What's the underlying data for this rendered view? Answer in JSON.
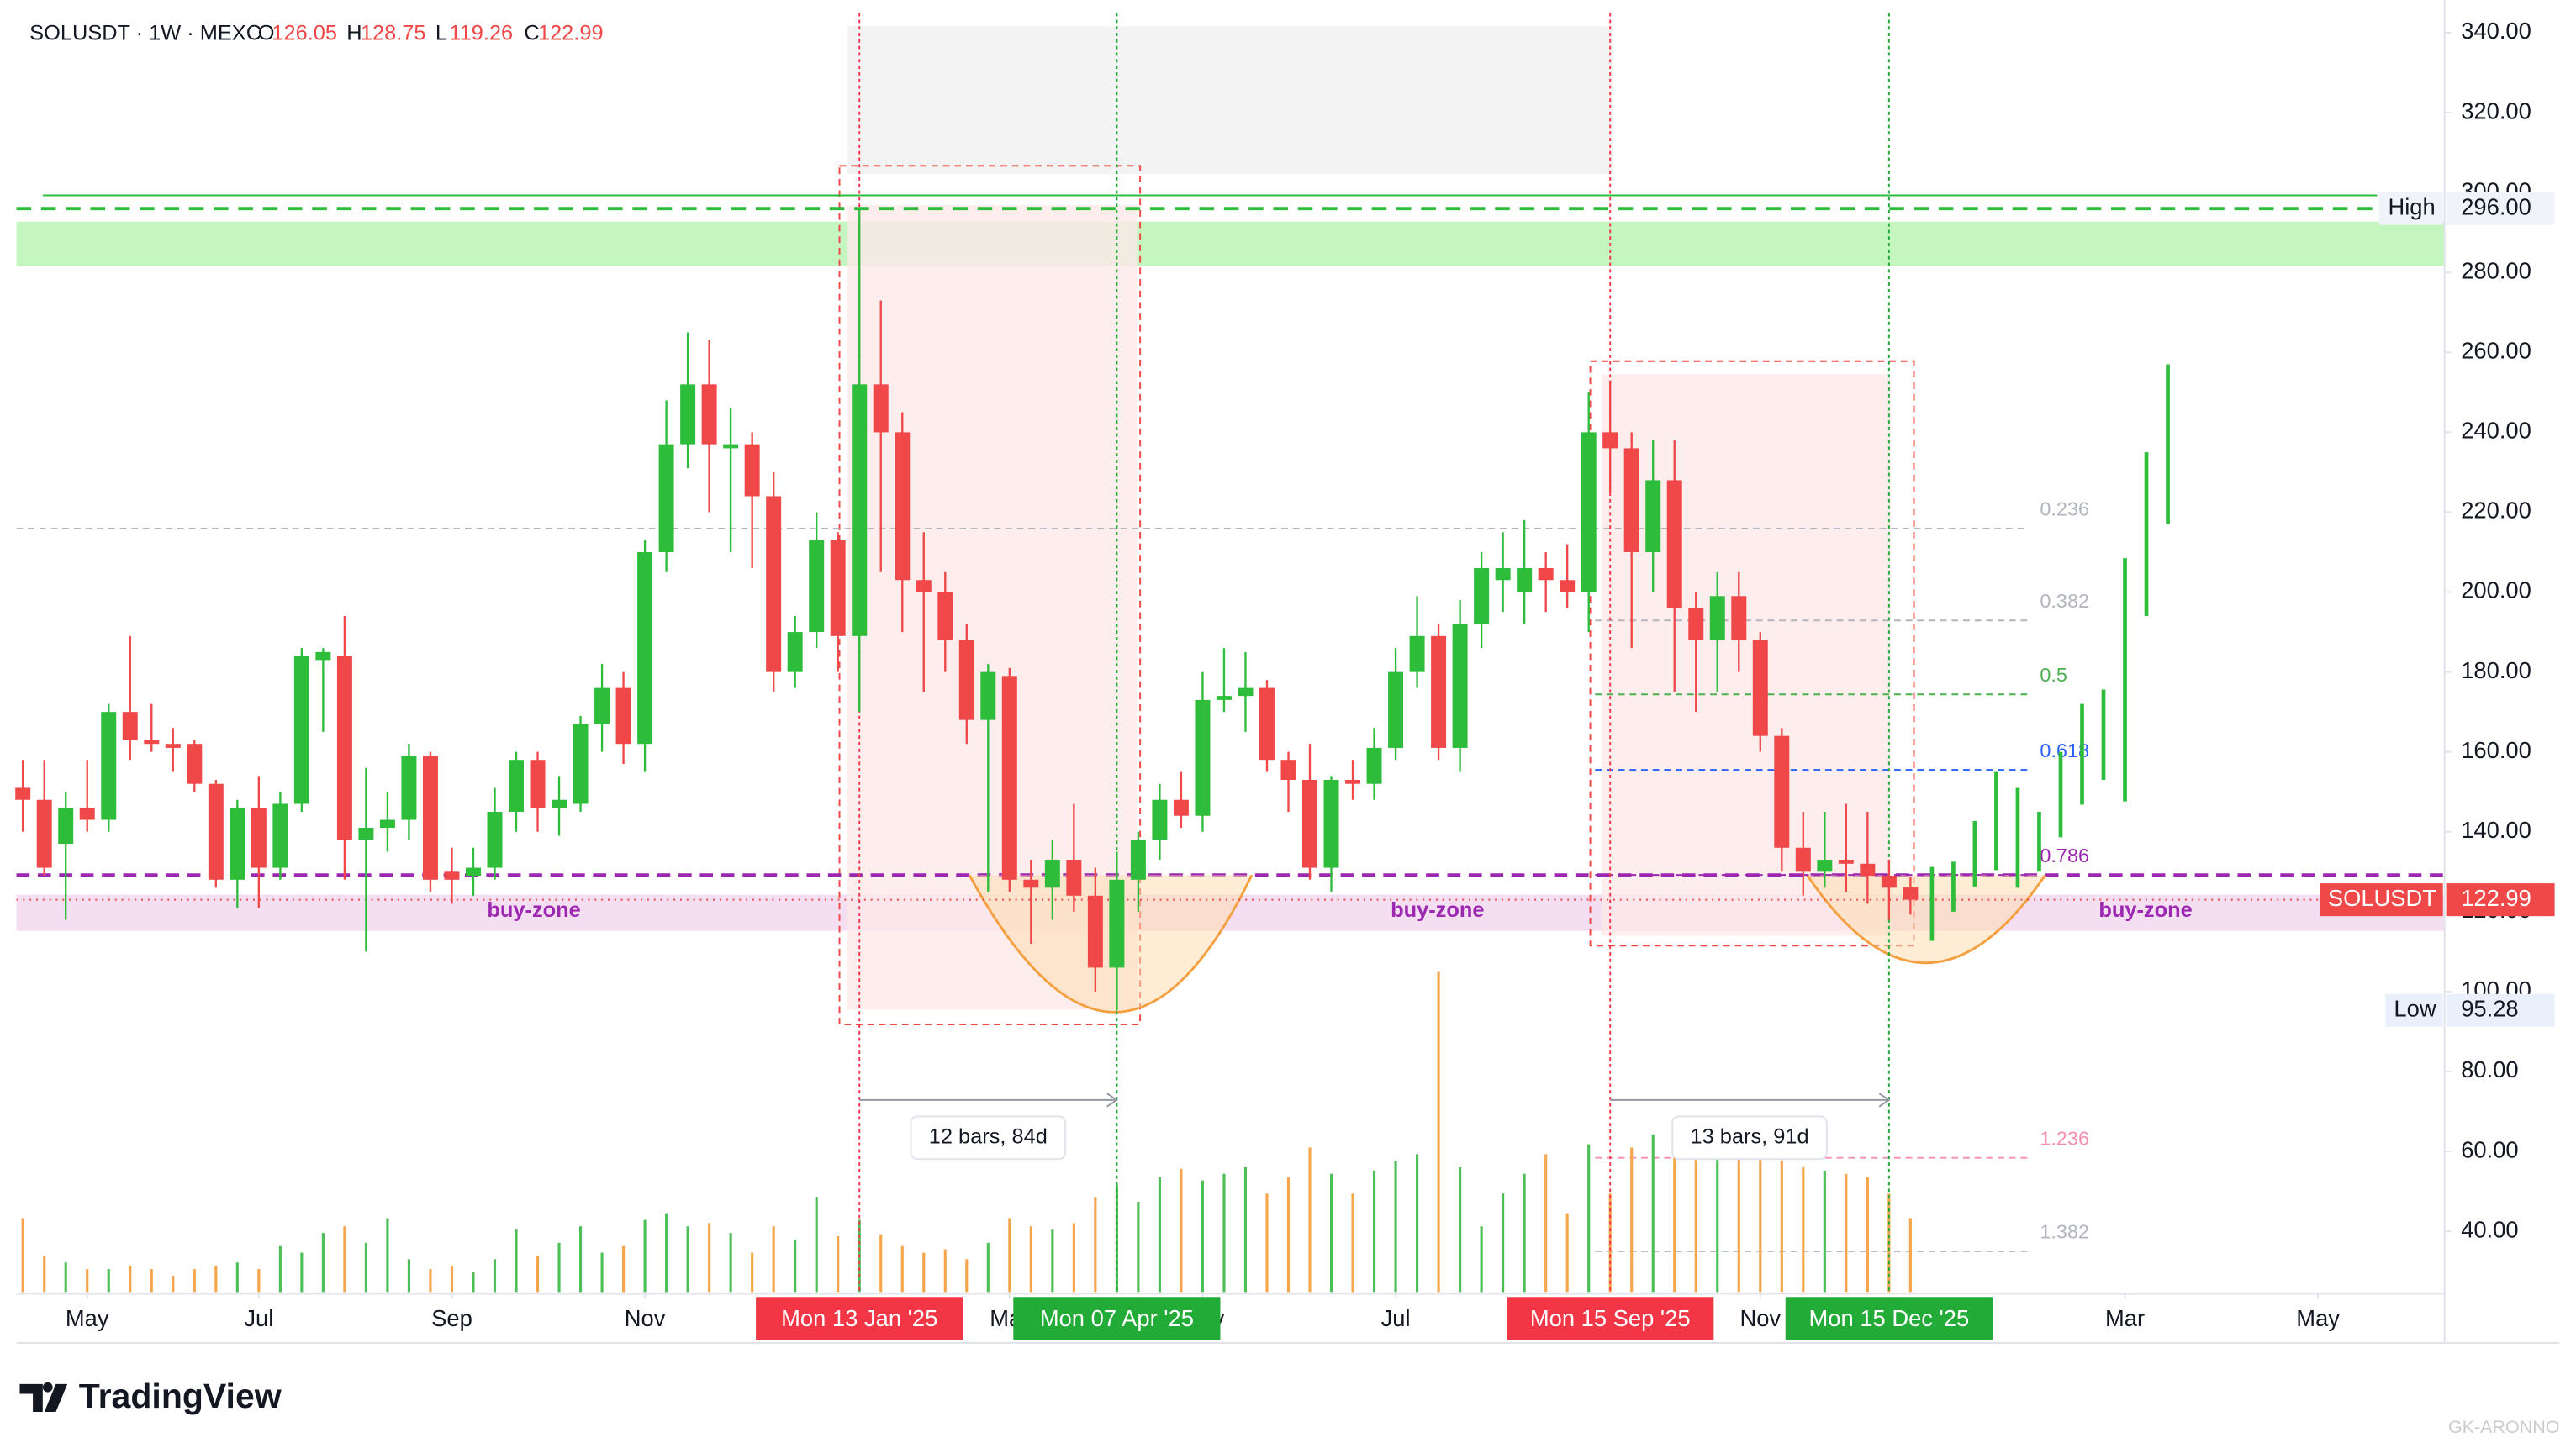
{
  "chart_data": {
    "type": "candlestick",
    "symbol": "SOLUSDT · 1W · MEXC",
    "ohlc": [
      {
        "label": "O",
        "value": 126.05
      },
      {
        "label": "H",
        "value": 128.75
      },
      {
        "label": "L",
        "value": 119.26
      },
      {
        "label": "C",
        "value": 122.99
      }
    ],
    "open": [
      151,
      148,
      137,
      146,
      143,
      170,
      163,
      162,
      162,
      152,
      128,
      146,
      131,
      147,
      183,
      184,
      138,
      141,
      143,
      159,
      130,
      129,
      131,
      145,
      158,
      146,
      147,
      167,
      176,
      162,
      210,
      237,
      252,
      236,
      237,
      224,
      180,
      190,
      213,
      189,
      252,
      240,
      203,
      200,
      188,
      168,
      179,
      128,
      126,
      133,
      124,
      106,
      128,
      138,
      148,
      144,
      173,
      174,
      176,
      158,
      153,
      131,
      153,
      152,
      161,
      180,
      189,
      161,
      192,
      203,
      200,
      206,
      203,
      200,
      240,
      236,
      210,
      228,
      196,
      188,
      199,
      188,
      164,
      136,
      130,
      133,
      132,
      129,
      126.05
    ],
    "high": [
      158,
      158,
      150,
      158,
      172,
      189,
      172,
      166,
      163,
      153,
      148,
      154,
      150,
      186,
      186,
      194,
      156,
      150,
      162,
      160,
      136,
      136,
      151,
      160,
      160,
      154,
      169,
      182,
      180,
      213,
      248,
      265,
      263,
      246,
      240,
      230,
      194,
      220,
      215,
      296,
      273,
      245,
      215,
      205,
      192,
      182,
      181,
      133,
      138,
      147,
      131,
      135,
      140,
      152,
      155,
      180,
      186,
      185,
      178,
      160,
      162,
      154,
      158,
      166,
      186,
      199,
      192,
      198,
      210,
      215,
      218,
      210,
      212,
      250,
      253,
      240,
      238,
      238,
      200,
      205,
      205,
      190,
      166,
      145,
      145,
      147,
      145,
      133,
      128.75
    ],
    "low": [
      140,
      129,
      118,
      140,
      140,
      158,
      160,
      155,
      150,
      126,
      121,
      121,
      128,
      145,
      165,
      128,
      110,
      135,
      138,
      125,
      122,
      124,
      128,
      140,
      140,
      139,
      145,
      160,
      157,
      155,
      205,
      231,
      220,
      210,
      206,
      175,
      176,
      186,
      180,
      170,
      205,
      190,
      175,
      180,
      162,
      125,
      125,
      112,
      118,
      120,
      100,
      95.28,
      120,
      133,
      141,
      140,
      170,
      165,
      155,
      145,
      128,
      125,
      148,
      148,
      158,
      176,
      158,
      155,
      186,
      195,
      192,
      195,
      196,
      190,
      225,
      186,
      200,
      175,
      170,
      175,
      180,
      160,
      130,
      124,
      126,
      125,
      122,
      118,
      119.26
    ],
    "close": [
      148,
      131,
      146,
      143,
      170,
      163,
      162,
      161,
      152,
      128,
      146,
      131,
      147,
      184,
      185,
      138,
      141,
      143,
      159,
      128,
      128,
      131,
      145,
      158,
      146,
      148,
      167,
      176,
      162,
      210,
      237,
      252,
      237,
      237,
      224,
      180,
      190,
      213,
      189,
      252,
      240,
      203,
      200,
      188,
      168,
      180,
      128,
      126,
      133,
      124,
      106,
      128,
      138,
      148,
      144,
      173,
      174,
      176,
      158,
      153,
      131,
      153,
      152,
      161,
      180,
      189,
      161,
      192,
      206,
      206,
      206,
      203,
      200,
      240,
      236,
      210,
      228,
      196,
      188,
      199,
      188,
      164,
      136,
      130,
      133,
      132,
      129,
      126,
      122.99
    ],
    "volume": [
      45,
      22,
      18,
      14,
      14,
      16,
      14,
      10,
      14,
      16,
      18,
      14,
      28,
      24,
      36,
      40,
      30,
      45,
      20,
      14,
      16,
      12,
      20,
      38,
      22,
      30,
      40,
      24,
      28,
      44,
      48,
      40,
      42,
      36,
      24,
      40,
      32,
      58,
      34,
      44,
      35,
      28,
      24,
      26,
      20,
      30,
      45,
      40,
      38,
      42,
      58,
      65,
      55,
      70,
      75,
      68,
      72,
      76,
      60,
      70,
      88,
      72,
      60,
      74,
      80,
      84,
      195,
      76,
      40,
      60,
      72,
      84,
      48,
      90,
      60,
      88,
      96,
      88,
      86,
      84,
      84,
      82,
      80,
      76,
      74,
      72,
      70,
      60,
      45
    ],
    "projection": [
      [
        112.7,
        131.2
      ],
      [
        120,
        132.5
      ],
      [
        126.3,
        142.7
      ],
      [
        130.4,
        155
      ],
      [
        126,
        151
      ],
      [
        130,
        145
      ],
      [
        138.6,
        160
      ],
      [
        146.8,
        172
      ],
      [
        153,
        175.6
      ],
      [
        147.6,
        208.5
      ],
      [
        194,
        235
      ],
      [
        217,
        257
      ]
    ],
    "up_color": "#2dbd3a",
    "down_color": "#f04848",
    "volume_up_color": "#4cbf57",
    "volume_down_color": "#f7a54a",
    "ylim": [
      24.8,
      348.2
    ],
    "yticks": [
      {
        "value": 40,
        "label": "40.00"
      },
      {
        "value": 60,
        "label": "60.00"
      },
      {
        "value": 80,
        "label": "80.00"
      },
      {
        "value": 100,
        "label": "100.00"
      },
      {
        "value": 120,
        "label": "120.00"
      },
      {
        "value": 140,
        "label": "140.00"
      },
      {
        "value": 160,
        "label": "160.00"
      },
      {
        "value": 180,
        "label": "180.00"
      },
      {
        "value": 200,
        "label": "200.00"
      },
      {
        "value": 220,
        "label": "220.00"
      },
      {
        "value": 240,
        "label": "240.00"
      },
      {
        "value": 260,
        "label": "260.00"
      },
      {
        "value": 280,
        "label": "280.00"
      },
      {
        "value": 300,
        "label": "300.00"
      },
      {
        "value": 320,
        "label": "320.00"
      },
      {
        "value": 340,
        "label": "340.00"
      }
    ],
    "xlim": [
      -0.3,
      112.9
    ],
    "xticks": [
      {
        "value": 3,
        "label": "May"
      },
      {
        "value": 11,
        "label": "Jul"
      },
      {
        "value": 20,
        "label": "Sep"
      },
      {
        "value": 29,
        "label": "Nov"
      },
      {
        "value": 46,
        "label": "Mar"
      },
      {
        "value": 55,
        "label": "May"
      },
      {
        "value": 64,
        "label": "Jul"
      },
      {
        "value": 81,
        "label": "Nov"
      },
      {
        "value": 98,
        "label": "Mar"
      },
      {
        "value": 107,
        "label": "May"
      }
    ],
    "date_labels": [
      {
        "index": 39,
        "label": "Mon 13 Jan '25",
        "color": "#f23645"
      },
      {
        "index": 51,
        "label": "Mon 07 Apr '25",
        "color": "#22ab36"
      },
      {
        "index": 74,
        "label": "Mon 15 Sep '25",
        "color": "#f23645"
      },
      {
        "index": 87,
        "label": "Mon 15 Dec '25",
        "color": "#22ab36"
      }
    ],
    "ranges": [
      {
        "label": "12 bars, 84d",
        "from": 39,
        "to": 51
      },
      {
        "label": "13 bars, 91d",
        "from": 74,
        "to": 87
      }
    ],
    "fib_levels": [
      {
        "level": 0.236,
        "price": 215.9,
        "color": "#b2b5be"
      },
      {
        "level": 0.382,
        "price": 192.9,
        "color": "#b2b5be"
      },
      {
        "level": 0.5,
        "price": 174.4,
        "color": "#4caf50"
      },
      {
        "level": 0.618,
        "price": 155.5,
        "color": "#2962ff"
      },
      {
        "level": 0.786,
        "price": 129.2,
        "color": "#9c27b0"
      },
      {
        "level": 1.236,
        "price": 58.4,
        "color": "#f48fb1"
      },
      {
        "level": 1.382,
        "price": 35,
        "color": "#b2b5be"
      }
    ],
    "fib_range": [
      73.3,
      93.5
    ],
    "price_labels": [
      {
        "name": "High",
        "price": {
          "value": 296,
          "label": "296.00"
        }
      },
      {
        "name": "SOLUSDT",
        "price": 122.99
      },
      {
        "name": "Low",
        "price": 95.28
      }
    ],
    "zone_label": "buy-zone",
    "branding": "TradingView",
    "watermark": "GK-ARONNO"
  }
}
